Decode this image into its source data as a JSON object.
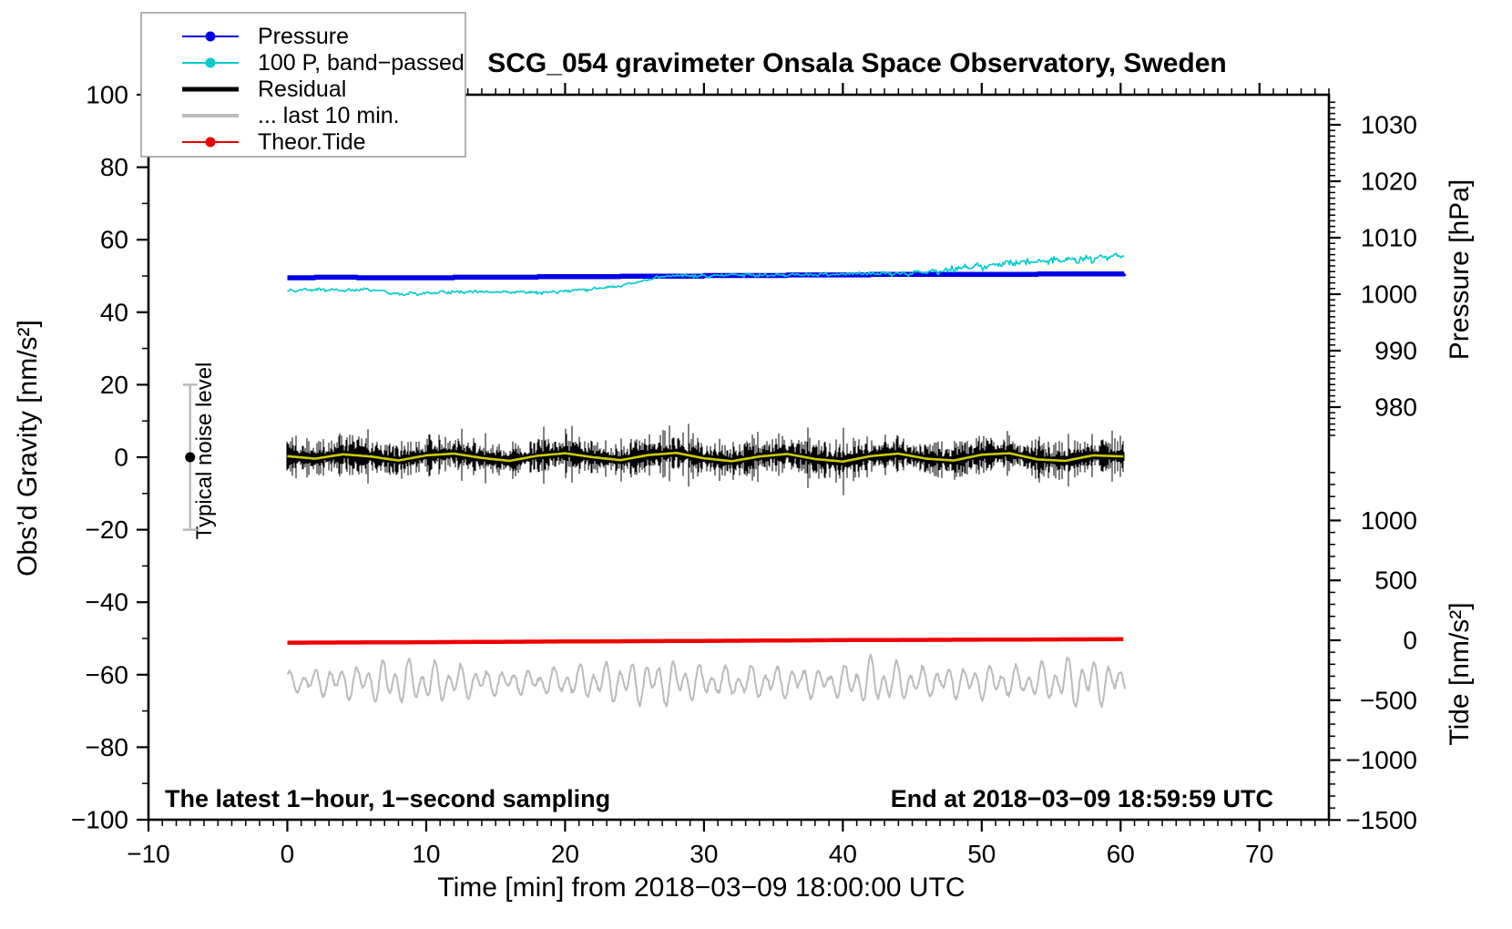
{
  "chart_data": {
    "type": "line",
    "title": "SCG_054 gravimeter Onsala Space Observatory, Sweden",
    "xlabel": "Time [min] from 2018−03−09 18:00:00 UTC",
    "annotations": {
      "sampling_note": "The latest 1−hour, 1−second sampling",
      "end_note": "End at 2018−03−09 18:59:59 UTC",
      "noise_label": "Typical noise level"
    },
    "axes": {
      "left": {
        "label": "Obs’d Gravity [nm/s²]",
        "range": [
          -100,
          100
        ],
        "ticks": [
          100,
          80,
          60,
          40,
          20,
          0,
          -20,
          -40,
          -60,
          -80,
          -100
        ],
        "minor_step": 10
      },
      "bottom": {
        "label_ref": "xlabel",
        "range": [
          -10,
          75
        ],
        "ticks": [
          -10,
          0,
          10,
          20,
          30,
          40,
          50,
          60,
          70
        ],
        "minor_step": 1
      },
      "right_pressure": {
        "label": "Pressure [hPa]",
        "ticks": [
          1030,
          1020,
          1010,
          1000,
          990,
          980
        ],
        "minor_step": 1,
        "minor_range": [
          1034,
          975
        ]
      },
      "right_tide": {
        "label": "Tide [nm/s²]",
        "ticks": [
          1000,
          500,
          0,
          -500,
          -1000,
          -1500
        ],
        "minor_step": 100,
        "minor_range": [
          1500,
          -1500
        ]
      }
    },
    "legend": {
      "items": [
        {
          "label": "Pressure",
          "color": "#0000E6",
          "line_width": 2,
          "marker": "dot"
        },
        {
          "label": "100 P, band−passed",
          "color": "#00CCCC",
          "line_width": 2,
          "marker": "dot"
        },
        {
          "label": "Residual",
          "color": "#000000",
          "line_width": 5,
          "marker": "none"
        },
        {
          "label": "... last 10 min.",
          "color": "#BBBBBB",
          "line_width": 4,
          "marker": "none"
        },
        {
          "label": "Theor.Tide",
          "color": "#EE0000",
          "line_width": 2,
          "marker": "dot"
        }
      ]
    },
    "noise_marker": {
      "t": -7,
      "center": 0,
      "half_range": 20,
      "bar_color": "#BBBBBB",
      "dot_color": "#000000"
    },
    "t_data_range": [
      0,
      60.3
    ],
    "series": [
      {
        "name": "Pressure",
        "axis": "pressure",
        "unit": "hPa",
        "color": "#0000E6",
        "width": 5.5,
        "render": "step",
        "quantize": 0.1,
        "keypoints": [
          [
            0,
            1002.9
          ],
          [
            4,
            1003.0
          ],
          [
            7,
            1002.85
          ],
          [
            10,
            1002.9
          ],
          [
            14,
            1003.0
          ],
          [
            18,
            1003.05
          ],
          [
            22,
            1003.1
          ],
          [
            26,
            1003.2
          ],
          [
            30,
            1003.25
          ],
          [
            34,
            1003.3
          ],
          [
            38,
            1003.4
          ],
          [
            42,
            1003.45
          ],
          [
            46,
            1003.45
          ],
          [
            50,
            1003.5
          ],
          [
            54,
            1003.55
          ],
          [
            57,
            1003.6
          ],
          [
            60.3,
            1003.65
          ]
        ]
      },
      {
        "name": "100 P, band−passed",
        "axis": "gravity",
        "unit": "nm/s²",
        "color": "#00CCCC",
        "width": 1.6,
        "render": "noisy-line",
        "keypoints": [
          [
            0,
            45.8
          ],
          [
            2,
            46.3
          ],
          [
            4,
            46.0
          ],
          [
            6,
            46.3
          ],
          [
            8,
            45.1
          ],
          [
            10,
            45.3
          ],
          [
            12,
            45.5
          ],
          [
            14,
            45.7
          ],
          [
            16,
            45.5
          ],
          [
            18,
            45.4
          ],
          [
            20,
            45.8
          ],
          [
            22,
            46.4
          ],
          [
            24,
            47.2
          ],
          [
            25.5,
            48.6
          ],
          [
            27,
            49.8
          ],
          [
            28,
            50.1
          ],
          [
            30,
            50.0
          ],
          [
            32,
            50.3
          ],
          [
            34,
            50.2
          ],
          [
            36,
            50.4
          ],
          [
            38,
            50.3
          ],
          [
            40,
            50.5
          ],
          [
            42,
            50.7
          ],
          [
            44,
            50.6
          ],
          [
            46,
            51.1
          ],
          [
            48,
            51.9
          ],
          [
            50,
            52.8
          ],
          [
            52,
            53.5
          ],
          [
            54,
            54.1
          ],
          [
            56,
            54.3
          ],
          [
            58,
            54.9
          ],
          [
            60.3,
            55.5
          ]
        ],
        "noise_amp_keypoints": [
          [
            0,
            0.35
          ],
          [
            22,
            0.3
          ],
          [
            44,
            0.4
          ],
          [
            48,
            0.75
          ],
          [
            60.3,
            0.8
          ]
        ]
      },
      {
        "name": "Residual",
        "axis": "gravity",
        "unit": "nm/s²",
        "color": "#000000",
        "width": 1,
        "render": "noise-band",
        "typical_halfwidth": 3.2,
        "max_spike": 9.3,
        "center_series": "Residual (smoothed)"
      },
      {
        "name": "Residual (smoothed)",
        "note": "unlabeled yellow smoothed-residual curve",
        "axis": "gravity",
        "unit": "nm/s²",
        "color": "#CCCC00",
        "width": 2.6,
        "render": "line",
        "keypoints": [
          [
            0,
            0.3
          ],
          [
            2,
            -0.4
          ],
          [
            4,
            0.8
          ],
          [
            6,
            0.2
          ],
          [
            8,
            -0.9
          ],
          [
            10,
            0.5
          ],
          [
            12,
            1.0
          ],
          [
            14,
            -0.2
          ],
          [
            16,
            -1.0
          ],
          [
            18,
            0.4
          ],
          [
            20,
            1.1
          ],
          [
            22,
            0.0
          ],
          [
            24,
            -0.8
          ],
          [
            26,
            0.6
          ],
          [
            28,
            1.2
          ],
          [
            30,
            -0.3
          ],
          [
            32,
            -1.1
          ],
          [
            34,
            0.2
          ],
          [
            36,
            0.9
          ],
          [
            38,
            -0.5
          ],
          [
            40,
            -1.2
          ],
          [
            42,
            0.3
          ],
          [
            44,
            1.0
          ],
          [
            46,
            -0.4
          ],
          [
            48,
            -0.9
          ],
          [
            50,
            0.7
          ],
          [
            52,
            1.1
          ],
          [
            54,
            -0.6
          ],
          [
            56,
            -1.0
          ],
          [
            58,
            0.5
          ],
          [
            60.3,
            0.2
          ]
        ]
      },
      {
        "name": "... last 10 min.",
        "axis": "gravity",
        "unit": "nm/s²",
        "color": "#BBBBBB",
        "width": 2,
        "render": "oscillation",
        "center": -62,
        "periods_min": [
          0.95,
          1.75
        ],
        "envelope_keypoints": [
          [
            0,
            3
          ],
          [
            4,
            4.5
          ],
          [
            8,
            7
          ],
          [
            11,
            6
          ],
          [
            14,
            4
          ],
          [
            18,
            3.5
          ],
          [
            22,
            5.5
          ],
          [
            27,
            7
          ],
          [
            31,
            4.5
          ],
          [
            35,
            5
          ],
          [
            39,
            4
          ],
          [
            42,
            7.5
          ],
          [
            46,
            4
          ],
          [
            50,
            5
          ],
          [
            53,
            4.5
          ],
          [
            57,
            8
          ],
          [
            60.3,
            5
          ]
        ]
      },
      {
        "name": "Theor.Tide",
        "axis": "tide",
        "unit": "nm/s²",
        "color": "#EE0000",
        "width": 4.5,
        "render": "line",
        "keypoints": [
          [
            0,
            -20
          ],
          [
            10,
            -16
          ],
          [
            20,
            -10
          ],
          [
            30,
            -5
          ],
          [
            40,
            1
          ],
          [
            50,
            5
          ],
          [
            60.3,
            9
          ]
        ]
      }
    ]
  }
}
